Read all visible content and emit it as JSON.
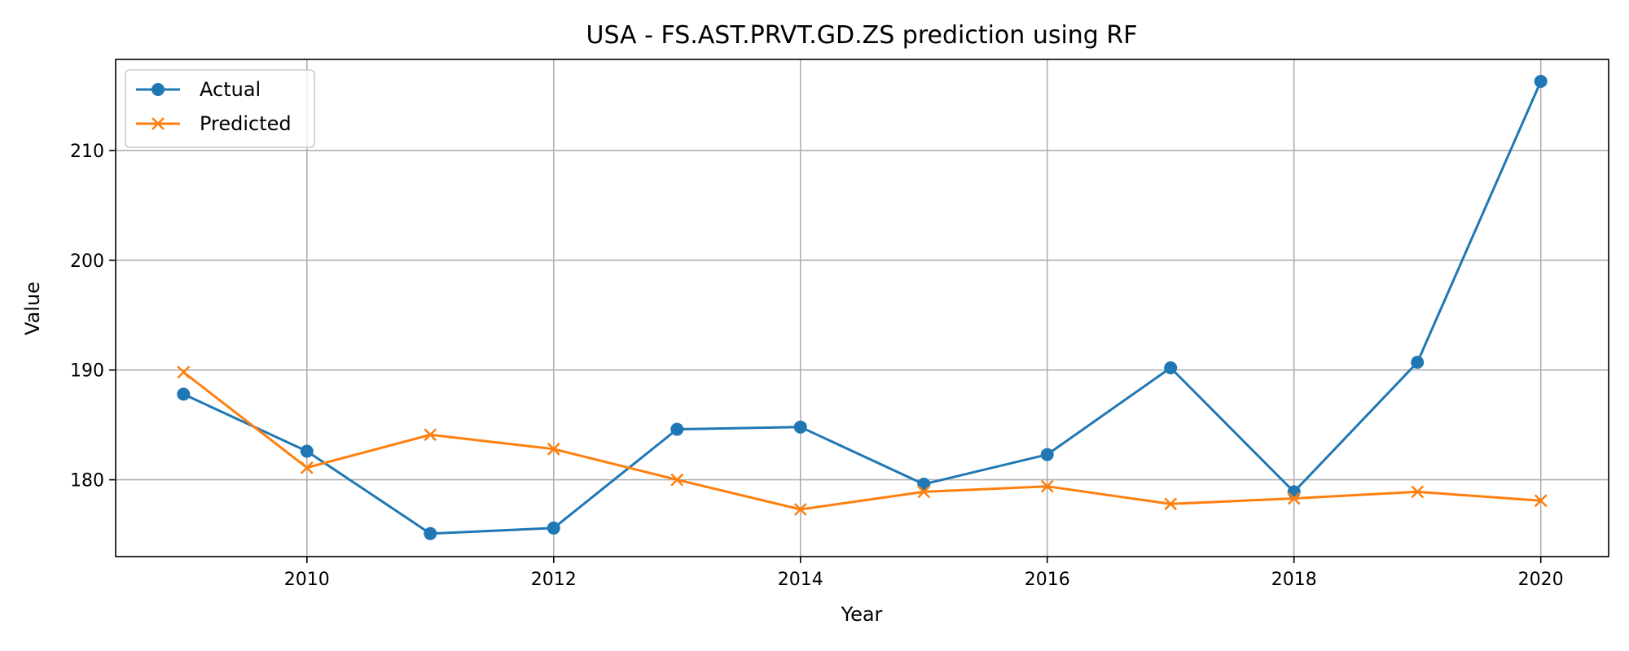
{
  "chart_data": {
    "type": "line",
    "title": "USA - FS.AST.PRVT.GD.ZS prediction using RF",
    "xlabel": "Year",
    "ylabel": "Value",
    "xlim": [
      2008.45,
      2020.55
    ],
    "ylim": [
      173.0,
      218.3
    ],
    "x_ticks": [
      2010,
      2012,
      2014,
      2016,
      2018,
      2020
    ],
    "y_ticks": [
      180,
      190,
      200,
      210
    ],
    "grid": true,
    "legend_position": "top-left",
    "x": [
      2009,
      2010,
      2011,
      2012,
      2013,
      2014,
      2015,
      2016,
      2017,
      2018,
      2019,
      2020
    ],
    "series": [
      {
        "name": "Actual",
        "color": "#1f77b4",
        "marker": "circle",
        "values": [
          187.8,
          182.6,
          175.1,
          175.6,
          184.6,
          184.8,
          179.6,
          182.3,
          190.2,
          178.9,
          190.7,
          216.3
        ]
      },
      {
        "name": "Predicted",
        "color": "#ff7f0e",
        "marker": "x",
        "values": [
          189.8,
          181.1,
          184.1,
          182.8,
          180.0,
          177.3,
          178.9,
          179.4,
          177.8,
          178.3,
          178.9,
          178.1
        ]
      }
    ]
  }
}
